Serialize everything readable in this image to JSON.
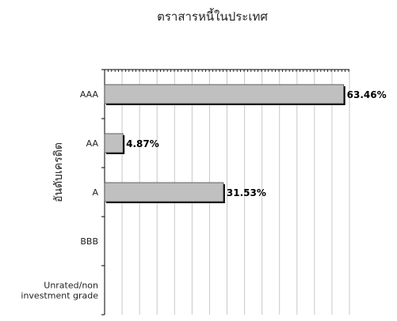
{
  "chart_data": {
    "type": "bar",
    "orientation": "horizontal",
    "title": "ตราสารหนี้ในประเทศ",
    "ylabel": "อันดับเครดิต",
    "xlabel": "",
    "categories": [
      "AAA",
      "AA",
      "A",
      "BBB",
      "Unrated/non investment grade"
    ],
    "category_lines": [
      [
        "AAA"
      ],
      [
        "AA"
      ],
      [
        "A"
      ],
      [
        "BBB"
      ],
      [
        "Unrated/non",
        "investment grade"
      ]
    ],
    "values": [
      63.46,
      4.87,
      31.53,
      0,
      0
    ],
    "labels": [
      "63.46%",
      "4.87%",
      "31.53%",
      "",
      ""
    ],
    "xlim": [
      0,
      65
    ],
    "grid_vertical": true,
    "grid_count": 14,
    "bar_color": "#c0c0c0",
    "bar_shadow_color": "#000000",
    "legend": "none"
  }
}
